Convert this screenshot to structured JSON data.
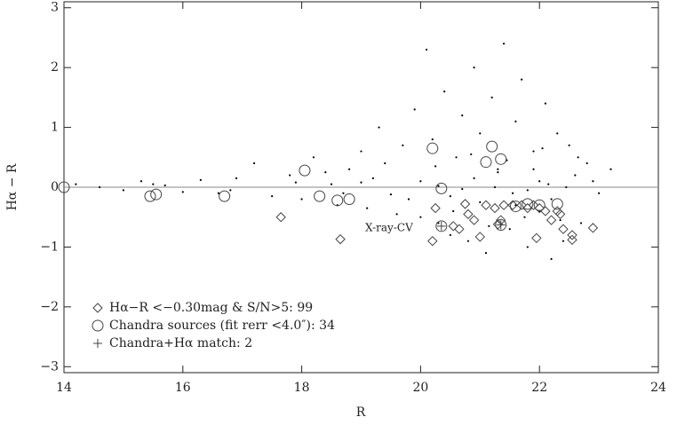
{
  "chart_data": {
    "type": "scatter",
    "x_label": "R",
    "y_label": "Hα − R",
    "xlim": [
      14,
      24
    ],
    "ylim": [
      -3.1,
      3.1
    ],
    "xticks": [
      14,
      16,
      18,
      20,
      22,
      24
    ],
    "yticks": [
      {
        "value": -3,
        "label": "−3"
      },
      {
        "value": -2,
        "label": "−2"
      },
      {
        "value": -1,
        "label": "−1"
      },
      0,
      1,
      2,
      3
    ],
    "hline": 0,
    "annotation": "X-ray-CV",
    "series": [
      {
        "color": "#000000",
        "marker": "dot",
        "x": [
          14.2,
          14.6,
          15.0,
          15.3,
          15.7,
          16.0,
          16.3,
          16.6,
          16.9,
          17.2,
          17.5,
          17.8,
          18.0,
          18.2,
          18.4,
          18.6,
          18.8,
          19.0,
          19.1,
          19.3,
          19.4,
          19.6,
          19.7,
          19.9,
          20.0,
          20.1,
          20.2,
          20.3,
          20.4,
          20.5,
          20.6,
          20.7,
          20.8,
          20.9,
          21.0,
          21.1,
          21.2,
          21.3,
          21.4,
          21.5,
          21.6,
          21.7,
          21.8,
          21.9,
          22.0,
          22.1,
          22.2,
          22.3,
          22.4,
          22.5,
          22.6,
          22.7,
          22.8,
          22.9,
          23.0,
          23.2,
          15.5,
          16.8,
          17.9,
          18.7,
          19.2,
          19.8,
          20.25,
          20.55,
          20.85,
          21.15,
          21.45,
          21.75,
          22.05,
          22.35,
          22.65,
          21.0,
          21.3,
          21.6,
          21.9,
          22.2,
          20.9,
          20.5,
          20.0,
          19.5,
          19.0,
          18.5,
          21.25,
          21.55,
          22.15,
          22.45,
          21.8,
          22.0,
          20.3,
          20.7
        ],
        "values": [
          0.05,
          0,
          -0.05,
          0.1,
          0.03,
          -0.08,
          0.12,
          -0.1,
          0.15,
          0.4,
          -0.15,
          0.2,
          -0.2,
          0.5,
          0.25,
          -0.3,
          0.3,
          0.6,
          -0.35,
          1.0,
          0.4,
          -0.45,
          0.7,
          1.3,
          -0.5,
          2.3,
          0.8,
          -0.6,
          1.6,
          -0.8,
          0.5,
          1.2,
          -0.9,
          2.0,
          0.9,
          -1.1,
          1.5,
          0.3,
          2.4,
          -0.7,
          1.1,
          1.8,
          -1.0,
          0.6,
          -0.4,
          1.4,
          -1.2,
          0.9,
          -0.9,
          0.7,
          0.2,
          -0.6,
          0.4,
          0.1,
          -0.1,
          0.3,
          0.05,
          -0.05,
          0.08,
          -0.1,
          0.15,
          -0.2,
          0.35,
          -0.4,
          0.55,
          -0.65,
          0.45,
          -0.5,
          0.65,
          -0.55,
          0.5,
          -0.25,
          0.25,
          -0.3,
          0.3,
          -0.2,
          0.15,
          -0.15,
          0.1,
          -0.12,
          0.08,
          0.05,
          0.0,
          -0.1,
          0.05,
          0.0,
          -0.05,
          0.1,
          0.02,
          -0.03
        ]
      },
      {
        "name": "Hα−R <−0.30mag & S/N>5: 99",
        "color": "#444444",
        "marker": "diamond",
        "x": [
          17.65,
          18.65,
          20.2,
          20.25,
          20.55,
          20.65,
          20.75,
          20.8,
          21.0,
          21.1,
          21.25,
          21.35,
          21.4,
          21.55,
          21.7,
          21.8,
          21.9,
          21.95,
          22.0,
          22.1,
          22.2,
          22.3,
          22.35,
          22.4,
          22.55,
          22.55,
          22.9,
          20.9,
          21.3
        ],
        "values": [
          -0.5,
          -0.87,
          -0.9,
          -0.35,
          -0.65,
          -0.7,
          -0.28,
          -0.45,
          -0.83,
          -0.3,
          -0.35,
          -0.55,
          -0.3,
          -0.3,
          -0.3,
          -0.35,
          -0.3,
          -0.85,
          -0.35,
          -0.4,
          -0.55,
          -0.4,
          -0.45,
          -0.7,
          -0.8,
          -0.88,
          -0.68,
          -0.55,
          -0.62
        ]
      },
      {
        "name": "Chandra sources (fit rerr <4.0″): 34",
        "color": "#444444",
        "marker": "circle",
        "x": [
          14.0,
          15.45,
          15.55,
          16.7,
          18.05,
          18.3,
          18.6,
          18.8,
          20.2,
          20.35,
          21.1,
          21.2,
          21.35,
          20.35,
          21.35,
          21.6,
          21.8,
          22.0,
          22.3
        ],
        "values": [
          0,
          -0.15,
          -0.12,
          -0.15,
          0.28,
          -0.15,
          -0.22,
          -0.2,
          0.65,
          -0.02,
          0.42,
          0.68,
          0.47,
          -0.65,
          -0.63,
          -0.32,
          -0.28,
          -0.3,
          -0.28
        ]
      },
      {
        "name": "Chandra+Hα match: 2",
        "color": "#444444",
        "marker": "plus",
        "x": [
          20.35,
          21.35
        ],
        "values": [
          -0.65,
          -0.63
        ]
      }
    ]
  }
}
